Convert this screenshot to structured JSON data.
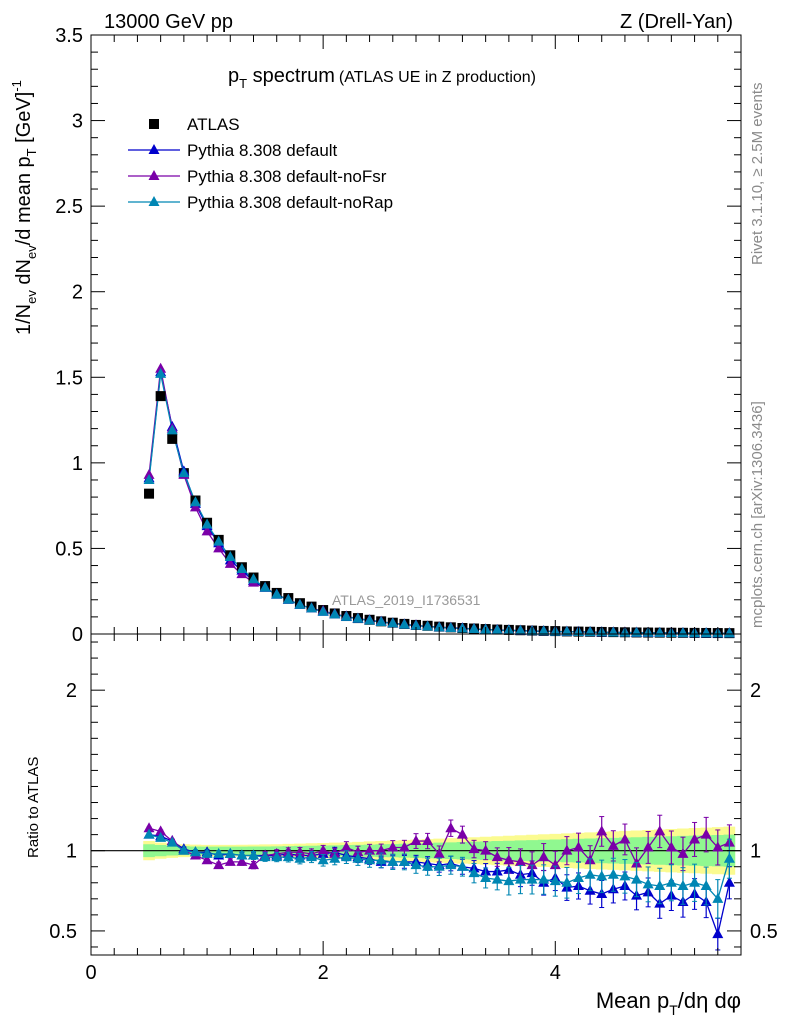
{
  "header": {
    "left": "13000 GeV pp",
    "right": "Z (Drell-Yan)"
  },
  "title": {
    "main_p": "p",
    "main_sub": "T",
    "main_rest": " spectrum",
    "note": "(ATLAS UE in Z production)"
  },
  "watermark": "ATLAS_2019_I1736531",
  "side": {
    "rivet": "Rivet 3.1.10, ≥ 2.5M events",
    "mcplots": "mcplots.cern.ch [arXiv:1306.3436]"
  },
  "ylabel_top": {
    "a": "1/N",
    "a_sub": "ev",
    "b": " dN",
    "b_sub": "ev",
    "c": "/d mean p",
    "c_sub": "T",
    "d": " [GeV]",
    "d_sup": "-1"
  },
  "ylabel_bottom": "Ratio to ATLAS",
  "xlabel": {
    "a": "Mean p",
    "a_sub": "T",
    "b": "/dη dφ"
  },
  "colors": {
    "data": "#000000",
    "default": "#0000cc",
    "noFsr": "#7a00a8",
    "noRap": "#0086b3",
    "band_inner": "#90f890",
    "band_outer": "#fbfb90"
  },
  "chart_data": [
    {
      "type": "scatter",
      "panel": "main",
      "xlim": [
        0,
        5.6
      ],
      "ylim": [
        0,
        3.5
      ],
      "yticks": [
        0,
        0.5,
        1,
        1.5,
        2,
        2.5,
        3,
        3.5
      ],
      "ytick_labels": [
        "0",
        "0.5",
        "1",
        "1.5",
        "2",
        "2.5",
        "3",
        "3.5"
      ],
      "legend_position": "top-left",
      "x": [
        0.5,
        0.6,
        0.7,
        0.8,
        0.9,
        1.0,
        1.1,
        1.2,
        1.3,
        1.4,
        1.5,
        1.6,
        1.7,
        1.8,
        1.9,
        2.0,
        2.1,
        2.2,
        2.3,
        2.4,
        2.5,
        2.6,
        2.7,
        2.8,
        2.9,
        3.0,
        3.1,
        3.2,
        3.3,
        3.4,
        3.5,
        3.6,
        3.7,
        3.8,
        3.9,
        4.0,
        4.1,
        4.2,
        4.3,
        4.4,
        4.5,
        4.6,
        4.7,
        4.8,
        4.9,
        5.0,
        5.1,
        5.2,
        5.3,
        5.4,
        5.5
      ],
      "series": [
        {
          "name": "ATLAS",
          "marker": "square",
          "values": [
            0.82,
            1.39,
            1.14,
            0.94,
            0.78,
            0.65,
            0.55,
            0.46,
            0.39,
            0.33,
            0.28,
            0.24,
            0.21,
            0.18,
            0.16,
            0.14,
            0.12,
            0.105,
            0.093,
            0.083,
            0.074,
            0.066,
            0.059,
            0.053,
            0.048,
            0.043,
            0.039,
            0.035,
            0.032,
            0.029,
            0.026,
            0.024,
            0.022,
            0.02,
            0.018,
            0.017,
            0.015,
            0.014,
            0.013,
            0.012,
            0.011,
            0.01,
            0.009,
            0.0085,
            0.008,
            0.0075,
            0.007,
            0.0065,
            0.006,
            0.0055,
            0.005
          ]
        },
        {
          "name": "Pythia 8.308 default",
          "marker": "triangle",
          "values": [
            0.91,
            1.53,
            1.21,
            0.95,
            0.76,
            0.63,
            0.53,
            0.43,
            0.37,
            0.31,
            0.27,
            0.23,
            0.2,
            0.17,
            0.15,
            0.13,
            0.115,
            0.1,
            0.089,
            0.079,
            0.07,
            0.062,
            0.055,
            0.049,
            0.044,
            0.039,
            0.035,
            0.032,
            0.029,
            0.026,
            0.023,
            0.021,
            0.019,
            0.017,
            0.016,
            0.014,
            0.013,
            0.012,
            0.011,
            0.0098,
            0.0089,
            0.0081,
            0.0074,
            0.0067,
            0.006,
            0.0055,
            0.005,
            0.0046,
            0.0042,
            0.0038,
            0.0035
          ]
        },
        {
          "name": "Pythia 8.308 default-noFsr",
          "marker": "triangle",
          "values": [
            0.93,
            1.55,
            1.2,
            0.93,
            0.74,
            0.6,
            0.5,
            0.41,
            0.35,
            0.3,
            0.27,
            0.23,
            0.2,
            0.17,
            0.15,
            0.135,
            0.117,
            0.103,
            0.09,
            0.081,
            0.072,
            0.063,
            0.056,
            0.051,
            0.044,
            0.04,
            0.037,
            0.034,
            0.03,
            0.027,
            0.024,
            0.022,
            0.02,
            0.018,
            0.017,
            0.015,
            0.014,
            0.013,
            0.012,
            0.011,
            0.01,
            0.0094,
            0.0083,
            0.0076,
            0.0072,
            0.007,
            0.0061,
            0.0057,
            0.0051,
            0.0049,
            0.0045
          ]
        },
        {
          "name": "Pythia 8.308 default-noRap",
          "marker": "triangle",
          "values": [
            0.9,
            1.52,
            1.19,
            0.94,
            0.77,
            0.64,
            0.54,
            0.45,
            0.38,
            0.32,
            0.27,
            0.23,
            0.2,
            0.17,
            0.15,
            0.13,
            0.115,
            0.1,
            0.089,
            0.079,
            0.07,
            0.062,
            0.055,
            0.049,
            0.044,
            0.039,
            0.035,
            0.032,
            0.029,
            0.026,
            0.023,
            0.021,
            0.019,
            0.017,
            0.016,
            0.014,
            0.013,
            0.012,
            0.011,
            0.01,
            0.009,
            0.0083,
            0.0076,
            0.007,
            0.0064,
            0.0059,
            0.0054,
            0.005,
            0.0046,
            0.0042,
            0.0038
          ]
        }
      ]
    },
    {
      "type": "scatter",
      "panel": "ratio",
      "xlim": [
        0,
        5.6
      ],
      "ylim": [
        0.35,
        2.35
      ],
      "yticks": [
        0.5,
        1,
        2
      ],
      "ytick_labels": [
        "0.5",
        "1",
        "2"
      ],
      "xticks": [
        0,
        2,
        4
      ],
      "xtick_labels": [
        "0",
        "2",
        "4"
      ],
      "x": [
        0.5,
        0.6,
        0.7,
        0.8,
        0.9,
        1.0,
        1.1,
        1.2,
        1.3,
        1.4,
        1.5,
        1.6,
        1.7,
        1.8,
        1.9,
        2.0,
        2.1,
        2.2,
        2.3,
        2.4,
        2.5,
        2.6,
        2.7,
        2.8,
        2.9,
        3.0,
        3.1,
        3.2,
        3.3,
        3.4,
        3.5,
        3.6,
        3.7,
        3.8,
        3.9,
        4.0,
        4.1,
        4.2,
        4.3,
        4.4,
        4.5,
        4.6,
        4.7,
        4.8,
        4.9,
        5.0,
        5.1,
        5.2,
        5.3,
        5.4,
        5.5
      ],
      "band_inner": [
        0.04,
        0.035,
        0.03,
        0.028,
        0.026,
        0.025,
        0.025,
        0.025,
        0.025,
        0.026,
        0.026,
        0.027,
        0.028,
        0.03,
        0.031,
        0.032,
        0.033,
        0.035,
        0.036,
        0.038,
        0.04,
        0.041,
        0.043,
        0.045,
        0.047,
        0.05,
        0.052,
        0.054,
        0.056,
        0.058,
        0.06,
        0.062,
        0.064,
        0.066,
        0.068,
        0.07,
        0.072,
        0.074,
        0.076,
        0.078,
        0.08,
        0.082,
        0.084,
        0.086,
        0.088,
        0.09,
        0.092,
        0.094,
        0.096,
        0.098,
        0.1
      ],
      "band_outer": [
        0.06,
        0.05,
        0.045,
        0.04,
        0.038,
        0.036,
        0.036,
        0.036,
        0.037,
        0.038,
        0.039,
        0.04,
        0.042,
        0.044,
        0.046,
        0.048,
        0.05,
        0.052,
        0.055,
        0.058,
        0.06,
        0.063,
        0.066,
        0.069,
        0.072,
        0.075,
        0.078,
        0.081,
        0.084,
        0.087,
        0.09,
        0.093,
        0.096,
        0.099,
        0.102,
        0.105,
        0.108,
        0.111,
        0.114,
        0.117,
        0.12,
        0.123,
        0.126,
        0.129,
        0.132,
        0.135,
        0.138,
        0.141,
        0.144,
        0.147,
        0.15
      ],
      "series": [
        {
          "name": "Pythia 8.308 default",
          "values": [
            1.1,
            1.09,
            1.06,
            1.01,
            0.99,
            0.99,
            0.97,
            0.98,
            0.97,
            0.97,
            0.97,
            0.97,
            0.98,
            0.97,
            0.97,
            0.98,
            0.99,
            0.97,
            0.96,
            0.95,
            0.93,
            0.93,
            0.93,
            0.93,
            0.92,
            0.91,
            0.92,
            0.9,
            0.89,
            0.87,
            0.87,
            0.88,
            0.85,
            0.86,
            0.8,
            0.83,
            0.77,
            0.78,
            0.75,
            0.73,
            0.76,
            0.78,
            0.72,
            0.74,
            0.67,
            0.72,
            0.68,
            0.73,
            0.68,
            0.48,
            0.8
          ]
        },
        {
          "name": "Pythia 8.308 default-noFsr",
          "values": [
            1.14,
            1.12,
            1.06,
            1.0,
            0.97,
            0.94,
            0.91,
            0.93,
            0.93,
            0.91,
            0.97,
            0.98,
            0.99,
            0.99,
            0.98,
            1.0,
            0.98,
            1.02,
            0.99,
            1.0,
            1.0,
            1.02,
            1.02,
            1.06,
            1.06,
            0.98,
            1.14,
            1.1,
            1.01,
            1.0,
            0.96,
            0.94,
            0.93,
            0.91,
            0.96,
            0.91,
            1.0,
            1.02,
            0.94,
            1.12,
            1.03,
            1.07,
            0.92,
            1.02,
            1.12,
            1.02,
            0.98,
            1.07,
            1.1,
            1.02,
            1.05
          ]
        },
        {
          "name": "Pythia 8.308 default-noRap",
          "values": [
            1.1,
            1.08,
            1.05,
            1.0,
            0.99,
            0.98,
            0.98,
            0.98,
            0.97,
            0.97,
            0.96,
            0.96,
            0.96,
            0.95,
            0.96,
            0.94,
            0.95,
            0.96,
            0.95,
            0.94,
            0.94,
            0.93,
            0.93,
            0.91,
            0.9,
            0.9,
            0.91,
            0.9,
            0.86,
            0.83,
            0.82,
            0.81,
            0.82,
            0.82,
            0.82,
            0.81,
            0.8,
            0.83,
            0.85,
            0.84,
            0.85,
            0.84,
            0.82,
            0.79,
            0.78,
            0.8,
            0.78,
            0.8,
            0.78,
            0.7,
            0.95
          ]
        }
      ]
    }
  ]
}
